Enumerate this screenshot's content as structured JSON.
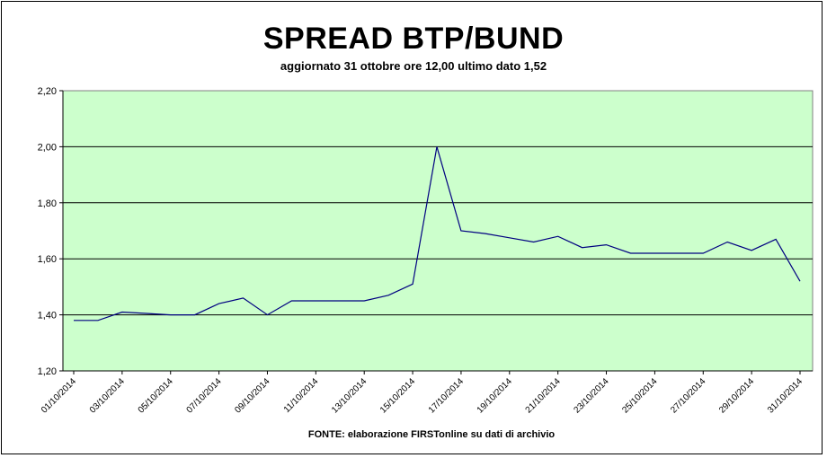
{
  "chart_data": {
    "type": "line",
    "title": "SPREAD BTP/BUND",
    "subtitle": "aggiornato 31 ottobre ore 12,00 ultimo dato 1,52",
    "source": "FONTE: elaborazione FIRSTonline su dati di archivio",
    "xlabel": "",
    "ylabel": "",
    "ylim": [
      1.2,
      2.2
    ],
    "yticks": [
      "1,20",
      "1,40",
      "1,60",
      "1,80",
      "2,00",
      "2,20"
    ],
    "xticks": [
      "01/10/2014",
      "03/10/2014",
      "05/10/2014",
      "07/10/2014",
      "09/10/2014",
      "11/10/2014",
      "13/10/2014",
      "15/10/2014",
      "17/10/2014",
      "19/10/2014",
      "21/10/2014",
      "23/10/2014",
      "25/10/2014",
      "27/10/2014",
      "29/10/2014",
      "31/10/2014"
    ],
    "grid": true,
    "plot_background": "#ccffcc",
    "line_color": "#000080",
    "series": [
      {
        "x": [
          "01/10/2014",
          "02/10/2014",
          "03/10/2014",
          "04/10/2014",
          "05/10/2014",
          "06/10/2014",
          "07/10/2014",
          "08/10/2014",
          "09/10/2014",
          "10/10/2014",
          "11/10/2014",
          "12/10/2014",
          "13/10/2014",
          "14/10/2014",
          "15/10/2014",
          "16/10/2014",
          "17/10/2014",
          "18/10/2014",
          "19/10/2014",
          "20/10/2014",
          "21/10/2014",
          "22/10/2014",
          "23/10/2014",
          "24/10/2014",
          "25/10/2014",
          "26/10/2014",
          "27/10/2014",
          "28/10/2014",
          "29/10/2014",
          "30/10/2014",
          "31/10/2014"
        ],
        "values": [
          1.38,
          1.38,
          1.41,
          1.405,
          1.4,
          1.4,
          1.44,
          1.46,
          1.4,
          1.45,
          1.45,
          1.45,
          1.45,
          1.47,
          1.51,
          2.0,
          1.7,
          1.69,
          1.675,
          1.66,
          1.68,
          1.64,
          1.65,
          1.62,
          1.62,
          1.62,
          1.62,
          1.66,
          1.63,
          1.67,
          1.52
        ]
      }
    ]
  }
}
